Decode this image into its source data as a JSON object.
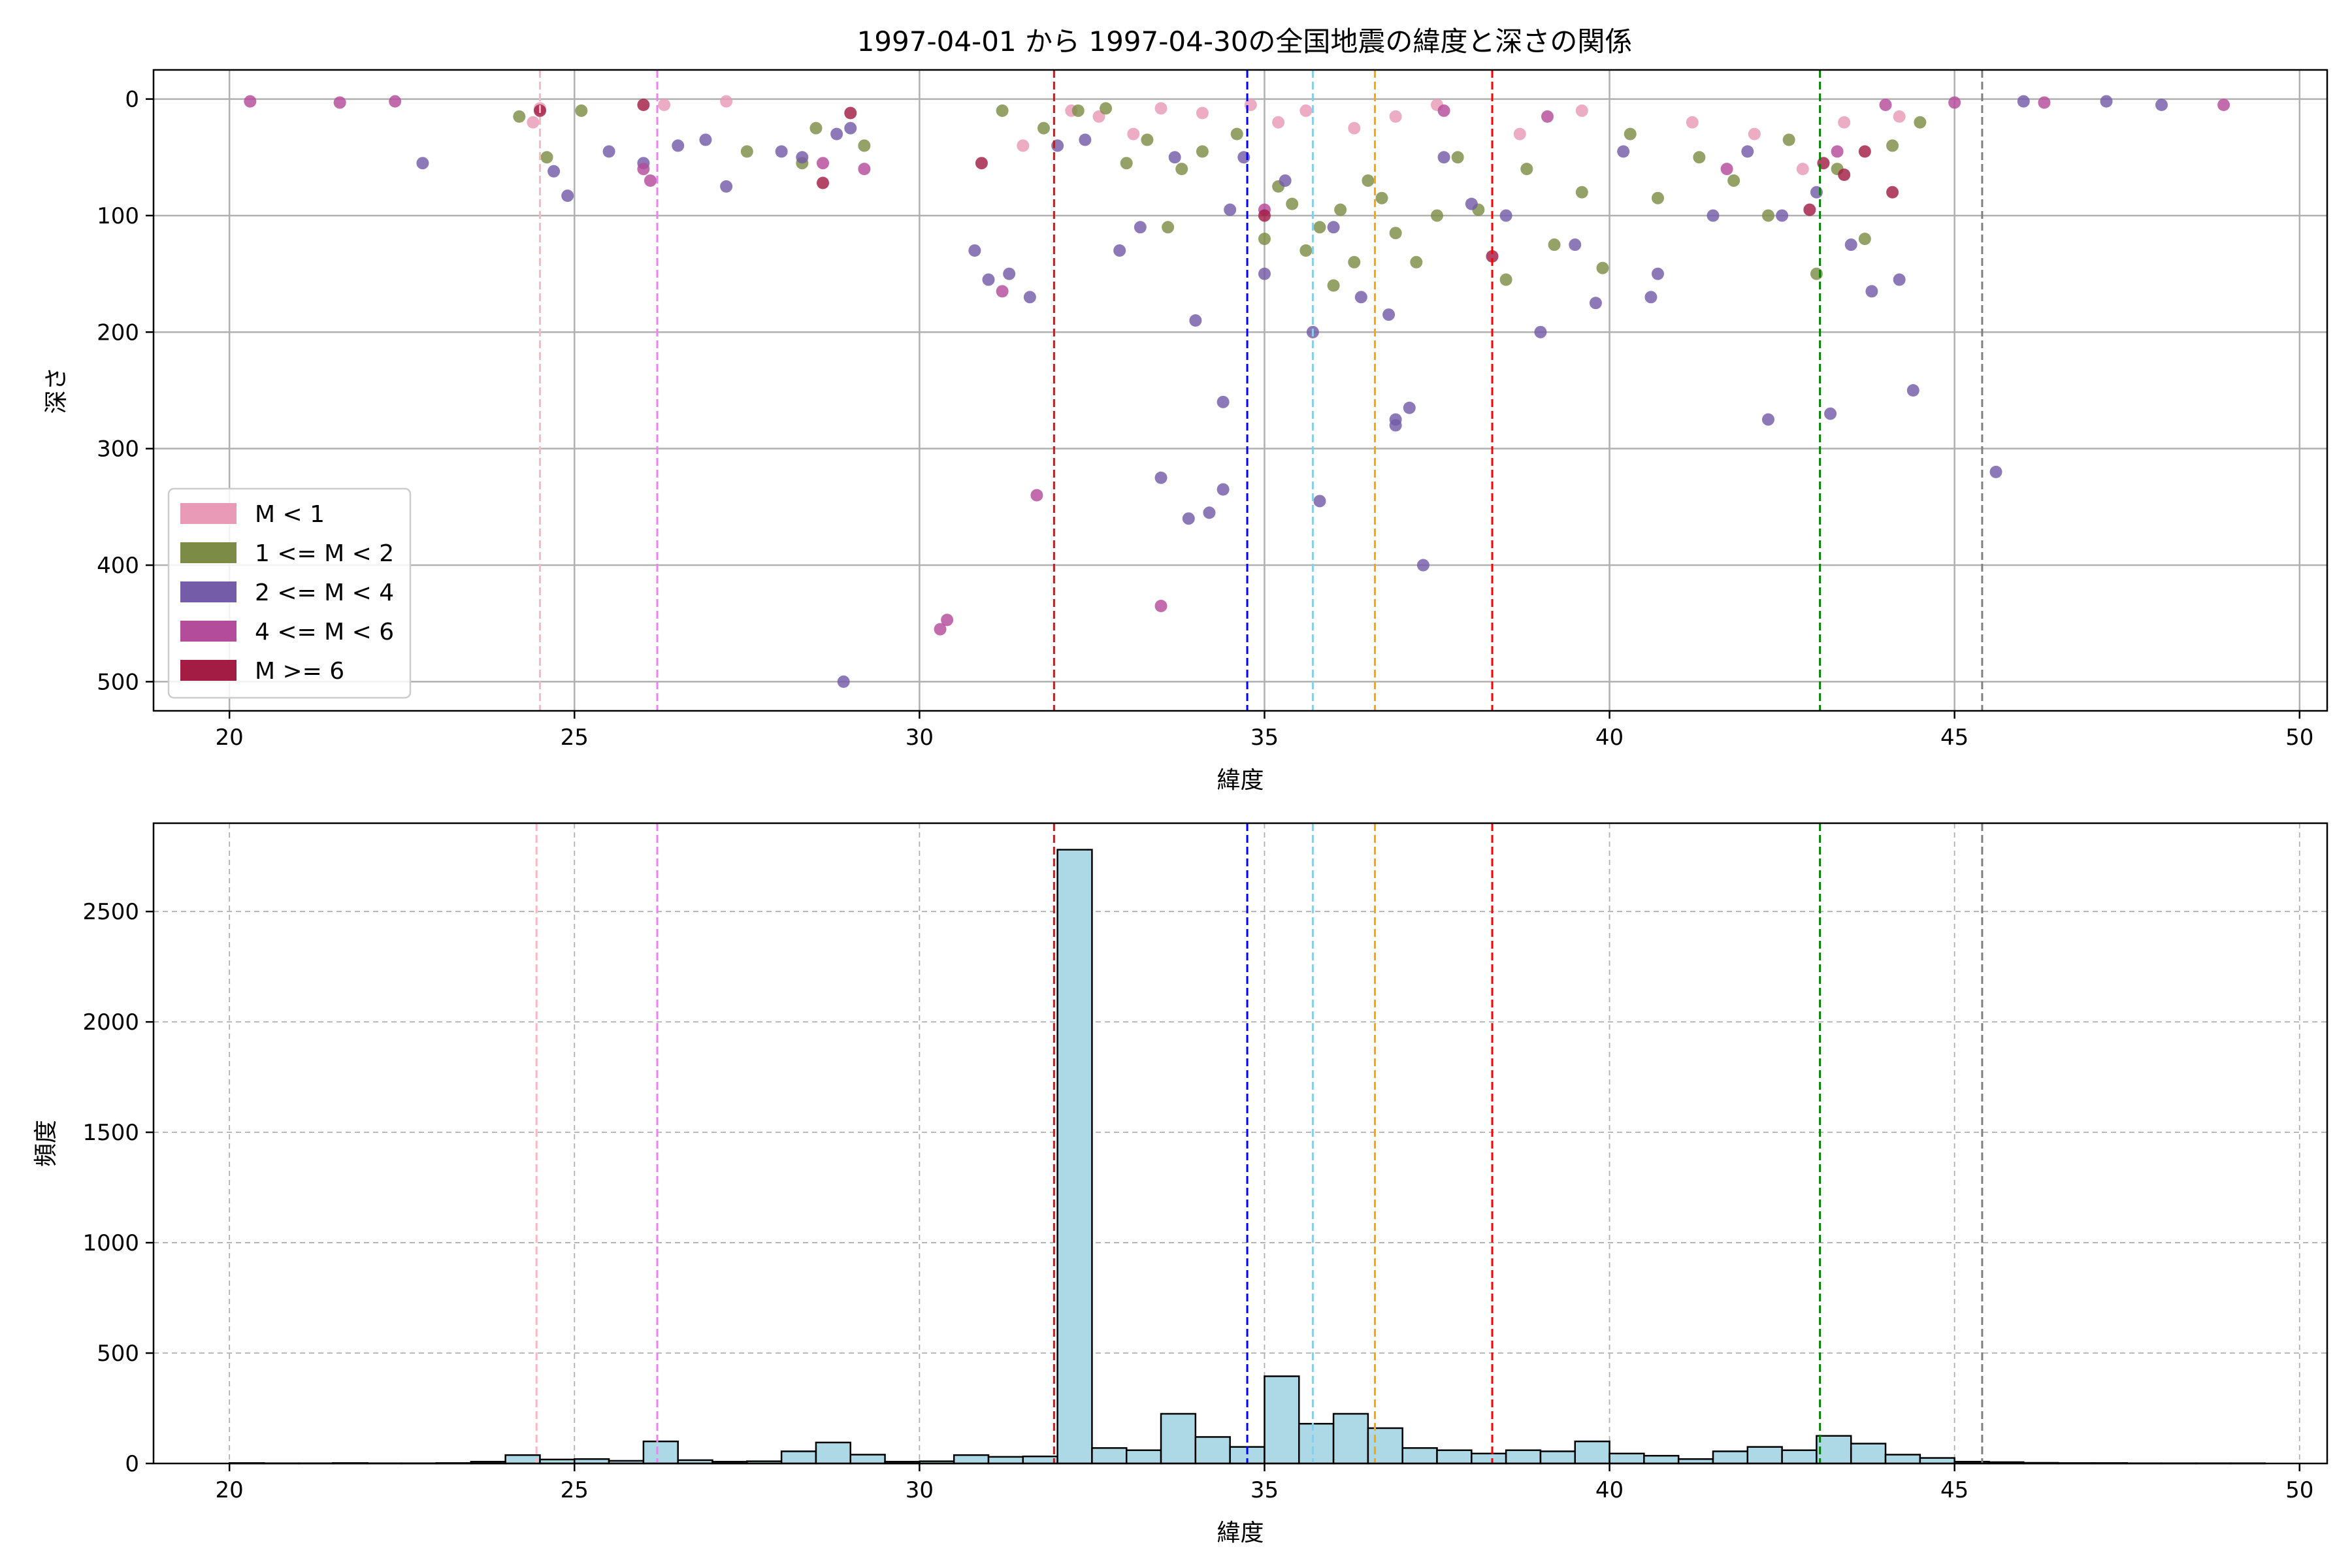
{
  "chart_data": [
    {
      "type": "scatter",
      "title": "1997-04-01 から 1997-04-30の全国地震の緯度と深さの関係",
      "xlabel": "緯度",
      "ylabel": "深さ",
      "xlim": [
        18.9,
        50.4
      ],
      "ylim": [
        525,
        -25
      ],
      "y_inverted": true,
      "grid": true,
      "legend_position": "lower-left",
      "xticks": [
        "20",
        "25",
        "30",
        "35",
        "40",
        "45",
        "50"
      ],
      "yticks": [
        "0",
        "100",
        "200",
        "300",
        "400",
        "500"
      ],
      "legend": [
        {
          "label": "M < 1",
          "color": "#e89ab6"
        },
        {
          "label": "1 <= M < 2",
          "color": "#7c8c46"
        },
        {
          "label": "2 <= M < 4",
          "color": "#745ca8"
        },
        {
          "label": "4 <= M < 6",
          "color": "#b44c9c"
        },
        {
          "label": "M >= 6",
          "color": "#a21c44"
        }
      ],
      "vlines": [
        {
          "x": 24.5,
          "color": "#ffb6c1"
        },
        {
          "x": 26.2,
          "color": "#ee82ee"
        },
        {
          "x": 31.95,
          "color": "#b22222"
        },
        {
          "x": 34.75,
          "color": "#0000ff"
        },
        {
          "x": 35.7,
          "color": "#87ceeb"
        },
        {
          "x": 36.6,
          "color": "#ffa500"
        },
        {
          "x": 38.3,
          "color": "#ff0000"
        },
        {
          "x": 43.05,
          "color": "#008000"
        },
        {
          "x": 45.4,
          "color": "#808080"
        }
      ],
      "series": [
        {
          "name": "M < 1",
          "color": "#e89ab6",
          "points": [
            [
              24.4,
              20
            ],
            [
              24.5,
              8
            ],
            [
              26.3,
              5
            ],
            [
              27.2,
              2
            ],
            [
              31.5,
              40
            ],
            [
              32.2,
              10
            ],
            [
              32.6,
              15
            ],
            [
              33.1,
              30
            ],
            [
              33.5,
              8
            ],
            [
              34.1,
              12
            ],
            [
              34.8,
              5
            ],
            [
              35.2,
              20
            ],
            [
              35.6,
              10
            ],
            [
              36.3,
              25
            ],
            [
              36.9,
              15
            ],
            [
              37.5,
              5
            ],
            [
              38.7,
              30
            ],
            [
              39.6,
              10
            ],
            [
              41.2,
              20
            ],
            [
              42.1,
              30
            ],
            [
              42.8,
              60
            ],
            [
              43.4,
              20
            ],
            [
              44.2,
              15
            ]
          ]
        },
        {
          "name": "1 <= M < 2",
          "color": "#7c8c46",
          "points": [
            [
              24.2,
              15
            ],
            [
              24.6,
              50
            ],
            [
              25.1,
              10
            ],
            [
              27.5,
              45
            ],
            [
              28.3,
              55
            ],
            [
              28.5,
              25
            ],
            [
              29.2,
              40
            ],
            [
              31.2,
              10
            ],
            [
              31.8,
              25
            ],
            [
              32.3,
              10
            ],
            [
              32.7,
              8
            ],
            [
              33.0,
              55
            ],
            [
              33.3,
              35
            ],
            [
              33.6,
              110
            ],
            [
              33.8,
              60
            ],
            [
              34.1,
              45
            ],
            [
              34.6,
              30
            ],
            [
              35.0,
              120
            ],
            [
              35.2,
              75
            ],
            [
              35.4,
              90
            ],
            [
              35.6,
              130
            ],
            [
              35.8,
              110
            ],
            [
              36.0,
              160
            ],
            [
              36.1,
              95
            ],
            [
              36.3,
              140
            ],
            [
              36.5,
              70
            ],
            [
              36.7,
              85
            ],
            [
              36.9,
              115
            ],
            [
              37.2,
              140
            ],
            [
              37.5,
              100
            ],
            [
              37.8,
              50
            ],
            [
              38.1,
              95
            ],
            [
              38.5,
              155
            ],
            [
              38.8,
              60
            ],
            [
              39.2,
              125
            ],
            [
              39.6,
              80
            ],
            [
              39.9,
              145
            ],
            [
              40.3,
              30
            ],
            [
              40.7,
              85
            ],
            [
              41.3,
              50
            ],
            [
              41.8,
              70
            ],
            [
              42.3,
              100
            ],
            [
              42.6,
              35
            ],
            [
              43.0,
              150
            ],
            [
              43.3,
              60
            ],
            [
              43.7,
              120
            ],
            [
              44.1,
              40
            ],
            [
              44.5,
              20
            ]
          ]
        },
        {
          "name": "2 <= M < 4",
          "color": "#745ca8",
          "points": [
            [
              22.8,
              55
            ],
            [
              24.7,
              62
            ],
            [
              24.9,
              83
            ],
            [
              25.5,
              45
            ],
            [
              26.0,
              55
            ],
            [
              26.5,
              40
            ],
            [
              26.9,
              35
            ],
            [
              27.2,
              75
            ],
            [
              28.0,
              45
            ],
            [
              28.3,
              50
            ],
            [
              28.8,
              30
            ],
            [
              29.0,
              25
            ],
            [
              28.9,
              500
            ],
            [
              30.8,
              130
            ],
            [
              31.0,
              155
            ],
            [
              31.3,
              150
            ],
            [
              31.6,
              170
            ],
            [
              32.0,
              40
            ],
            [
              32.4,
              35
            ],
            [
              32.9,
              130
            ],
            [
              33.2,
              110
            ],
            [
              33.5,
              325
            ],
            [
              33.7,
              50
            ],
            [
              33.9,
              360
            ],
            [
              34.0,
              190
            ],
            [
              34.2,
              355
            ],
            [
              34.4,
              260
            ],
            [
              34.4,
              335
            ],
            [
              34.5,
              95
            ],
            [
              34.7,
              50
            ],
            [
              35.0,
              150
            ],
            [
              35.3,
              70
            ],
            [
              35.7,
              200
            ],
            [
              35.8,
              345
            ],
            [
              36.0,
              110
            ],
            [
              36.4,
              170
            ],
            [
              36.8,
              185
            ],
            [
              36.9,
              275
            ],
            [
              36.9,
              280
            ],
            [
              37.1,
              265
            ],
            [
              37.3,
              400
            ],
            [
              37.6,
              50
            ],
            [
              38.0,
              90
            ],
            [
              38.5,
              100
            ],
            [
              39.0,
              200
            ],
            [
              39.5,
              125
            ],
            [
              39.8,
              175
            ],
            [
              40.2,
              45
            ],
            [
              40.6,
              170
            ],
            [
              40.7,
              150
            ],
            [
              41.5,
              100
            ],
            [
              42.0,
              45
            ],
            [
              42.3,
              275
            ],
            [
              42.5,
              100
            ],
            [
              43.0,
              80
            ],
            [
              43.2,
              270
            ],
            [
              43.5,
              125
            ],
            [
              43.8,
              165
            ],
            [
              44.2,
              155
            ],
            [
              44.4,
              250
            ],
            [
              45.6,
              320
            ],
            [
              46.0,
              2
            ],
            [
              47.2,
              2
            ],
            [
              48.0,
              5
            ]
          ]
        },
        {
          "name": "4 <= M < 6",
          "color": "#b44c9c",
          "points": [
            [
              20.3,
              2
            ],
            [
              21.6,
              3
            ],
            [
              22.4,
              2
            ],
            [
              26.0,
              60
            ],
            [
              26.1,
              70
            ],
            [
              28.6,
              55
            ],
            [
              29.2,
              60
            ],
            [
              30.3,
              455
            ],
            [
              30.4,
              447
            ],
            [
              31.2,
              165
            ],
            [
              31.7,
              340
            ],
            [
              33.5,
              435
            ],
            [
              35.0,
              95
            ],
            [
              37.6,
              10
            ],
            [
              39.1,
              15
            ],
            [
              41.7,
              60
            ],
            [
              43.3,
              45
            ],
            [
              44.0,
              5
            ],
            [
              45.0,
              3
            ],
            [
              46.3,
              3
            ],
            [
              48.9,
              5
            ]
          ]
        },
        {
          "name": "M >= 6",
          "color": "#a21c44",
          "points": [
            [
              24.5,
              10
            ],
            [
              26.0,
              5
            ],
            [
              28.6,
              72
            ],
            [
              29.0,
              12
            ],
            [
              30.9,
              55
            ],
            [
              35.0,
              100
            ],
            [
              38.3,
              135
            ],
            [
              42.9,
              95
            ],
            [
              43.1,
              55
            ],
            [
              43.4,
              65
            ],
            [
              43.7,
              45
            ],
            [
              44.1,
              80
            ]
          ]
        }
      ]
    },
    {
      "type": "bar",
      "xlabel": "緯度",
      "ylabel": "頻度",
      "xlim": [
        18.9,
        50.4
      ],
      "ylim": [
        0,
        2900
      ],
      "grid": true,
      "xticks": [
        "20",
        "25",
        "30",
        "35",
        "40",
        "45",
        "50"
      ],
      "yticks": [
        "0",
        "500",
        "1000",
        "1500",
        "2000",
        "2500"
      ],
      "bar_color": "#add8e6",
      "bin_width": 0.5,
      "bins": [
        {
          "x0": 20.0,
          "value": 2
        },
        {
          "x0": 20.5,
          "value": 1
        },
        {
          "x0": 21.0,
          "value": 1
        },
        {
          "x0": 21.5,
          "value": 2
        },
        {
          "x0": 22.0,
          "value": 1
        },
        {
          "x0": 22.5,
          "value": 1
        },
        {
          "x0": 23.0,
          "value": 2
        },
        {
          "x0": 23.5,
          "value": 8
        },
        {
          "x0": 24.0,
          "value": 38
        },
        {
          "x0": 24.5,
          "value": 18
        },
        {
          "x0": 25.0,
          "value": 20
        },
        {
          "x0": 25.5,
          "value": 12
        },
        {
          "x0": 26.0,
          "value": 100
        },
        {
          "x0": 26.5,
          "value": 15
        },
        {
          "x0": 27.0,
          "value": 8
        },
        {
          "x0": 27.5,
          "value": 10
        },
        {
          "x0": 28.0,
          "value": 55
        },
        {
          "x0": 28.5,
          "value": 95
        },
        {
          "x0": 29.0,
          "value": 40
        },
        {
          "x0": 29.5,
          "value": 8
        },
        {
          "x0": 30.0,
          "value": 10
        },
        {
          "x0": 30.5,
          "value": 38
        },
        {
          "x0": 31.0,
          "value": 30
        },
        {
          "x0": 31.5,
          "value": 32
        },
        {
          "x0": 32.0,
          "value": 2780
        },
        {
          "x0": 32.5,
          "value": 70
        },
        {
          "x0": 33.0,
          "value": 60
        },
        {
          "x0": 33.5,
          "value": 225
        },
        {
          "x0": 34.0,
          "value": 120
        },
        {
          "x0": 34.5,
          "value": 75
        },
        {
          "x0": 35.0,
          "value": 395
        },
        {
          "x0": 35.5,
          "value": 180
        },
        {
          "x0": 36.0,
          "value": 225
        },
        {
          "x0": 36.5,
          "value": 160
        },
        {
          "x0": 37.0,
          "value": 70
        },
        {
          "x0": 37.5,
          "value": 60
        },
        {
          "x0": 38.0,
          "value": 45
        },
        {
          "x0": 38.5,
          "value": 60
        },
        {
          "x0": 39.0,
          "value": 55
        },
        {
          "x0": 39.5,
          "value": 100
        },
        {
          "x0": 40.0,
          "value": 45
        },
        {
          "x0": 40.5,
          "value": 35
        },
        {
          "x0": 41.0,
          "value": 20
        },
        {
          "x0": 41.5,
          "value": 55
        },
        {
          "x0": 42.0,
          "value": 75
        },
        {
          "x0": 42.5,
          "value": 60
        },
        {
          "x0": 43.0,
          "value": 125
        },
        {
          "x0": 43.5,
          "value": 90
        },
        {
          "x0": 44.0,
          "value": 40
        },
        {
          "x0": 44.5,
          "value": 25
        },
        {
          "x0": 45.0,
          "value": 8
        },
        {
          "x0": 45.5,
          "value": 6
        },
        {
          "x0": 46.0,
          "value": 3
        },
        {
          "x0": 46.5,
          "value": 2
        },
        {
          "x0": 47.0,
          "value": 2
        },
        {
          "x0": 47.5,
          "value": 1
        },
        {
          "x0": 48.0,
          "value": 1
        },
        {
          "x0": 48.5,
          "value": 1
        },
        {
          "x0": 49.0,
          "value": 1
        }
      ],
      "vlines": [
        {
          "x": 24.45,
          "color": "#ffb6c1"
        },
        {
          "x": 26.2,
          "color": "#ee82ee"
        },
        {
          "x": 31.95,
          "color": "#b22222"
        },
        {
          "x": 34.75,
          "color": "#0000ff"
        },
        {
          "x": 35.7,
          "color": "#87ceeb"
        },
        {
          "x": 36.6,
          "color": "#ffa500"
        },
        {
          "x": 38.3,
          "color": "#ff0000"
        },
        {
          "x": 43.05,
          "color": "#008000"
        },
        {
          "x": 45.4,
          "color": "#808080"
        }
      ]
    }
  ]
}
